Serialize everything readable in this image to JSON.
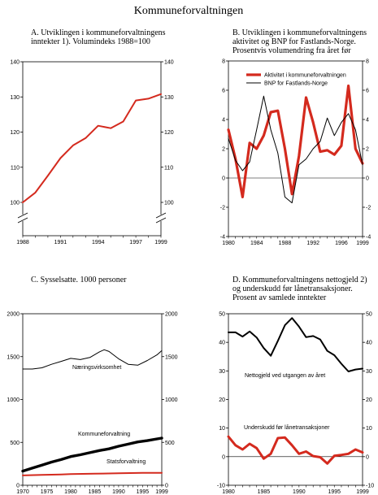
{
  "figure_title": "Kommuneforvaltningen",
  "chart_data": [
    {
      "id": "A",
      "type": "line",
      "title_lines": [
        "A.  Utviklingen i kommuneforvaltningens",
        "inntekter 1). Volumindeks 1988=100"
      ],
      "xlim": [
        1988,
        1999
      ],
      "ylim": [
        100,
        140
      ],
      "y_break": true,
      "x_ticks": [
        1988,
        1991,
        1994,
        1997,
        1999
      ],
      "y_ticks": [
        100,
        110,
        120,
        130,
        140
      ],
      "y_ticks_right": [
        100,
        110,
        120,
        130,
        140
      ],
      "series": [
        {
          "color": "#d42a1e",
          "width": 2,
          "x": [
            1988,
            1989,
            1990,
            1991,
            1992,
            1993,
            1994,
            1995,
            1996,
            1997,
            1998,
            1999
          ],
          "y": [
            100.0,
            102.8,
            107.6,
            112.6,
            116.2,
            118.3,
            121.8,
            121.1,
            123.0,
            129.0,
            129.5,
            130.8
          ]
        }
      ]
    },
    {
      "id": "B",
      "type": "line",
      "title_lines": [
        "B.  Utviklingen i kommuneforvaltningens",
        "aktivitet og BNP for Fastlands-Norge.",
        "Prosentvis volumendring fra året før"
      ],
      "xlim": [
        1980,
        1999
      ],
      "ylim": [
        -4,
        8
      ],
      "x_ticks": [
        1980,
        1984,
        1988,
        1992,
        1996,
        1999
      ],
      "y_ticks": [
        -4,
        -2,
        0,
        2,
        4,
        6,
        8
      ],
      "y_ticks_right": [
        -4,
        -2,
        0,
        2,
        4,
        6,
        8
      ],
      "zero_line": true,
      "legend_position": "top-left",
      "series": [
        {
          "name": "Aktivitet i kommuneforvaltningen",
          "color": "#d42a1e",
          "width": 3.2,
          "x": [
            1980,
            1981,
            1982,
            1983,
            1984,
            1985,
            1986,
            1987,
            1988,
            1989,
            1990,
            1991,
            1992,
            1993,
            1994,
            1995,
            1996,
            1997,
            1998,
            1999
          ],
          "y": [
            3.3,
            1.3,
            -1.3,
            2.4,
            2.0,
            2.9,
            4.5,
            4.6,
            2.0,
            -1.1,
            1.5,
            5.5,
            3.8,
            1.8,
            1.9,
            1.6,
            2.2,
            6.3,
            2.0,
            1.0
          ]
        },
        {
          "name": "BNP for Fastlands-Norge",
          "color": "#000000",
          "width": 1,
          "x": [
            1980,
            1981,
            1982,
            1983,
            1984,
            1985,
            1986,
            1987,
            1988,
            1989,
            1990,
            1991,
            1992,
            1993,
            1994,
            1995,
            1996,
            1997,
            1998,
            1999
          ],
          "y": [
            2.7,
            1.2,
            0.5,
            1.1,
            3.3,
            5.6,
            3.3,
            1.7,
            -1.3,
            -1.7,
            0.9,
            1.3,
            2.0,
            2.5,
            4.1,
            2.9,
            3.8,
            4.4,
            3.3,
            0.9
          ]
        }
      ]
    },
    {
      "id": "C",
      "type": "line",
      "title_lines": [
        "C.  Sysselsatte. 1000 personer"
      ],
      "xlim": [
        1970,
        1999
      ],
      "ylim": [
        0,
        2000
      ],
      "x_ticks": [
        1970,
        1975,
        1980,
        1985,
        1990,
        1995,
        1999
      ],
      "y_ticks": [
        0,
        500,
        1000,
        1500,
        2000
      ],
      "y_ticks_right": [
        0,
        500,
        1000,
        1500,
        2000
      ],
      "series": [
        {
          "name": "Næringsvirksomhet",
          "color": "#000000",
          "width": 1,
          "x": [
            1970,
            1972,
            1974,
            1976,
            1978,
            1980,
            1982,
            1984,
            1986,
            1987,
            1988,
            1990,
            1992,
            1994,
            1996,
            1998,
            1999
          ],
          "y": [
            1355,
            1355,
            1370,
            1410,
            1445,
            1480,
            1465,
            1490,
            1555,
            1580,
            1560,
            1475,
            1410,
            1400,
            1455,
            1520,
            1570
          ]
        },
        {
          "name": "Kommuneforvaltning",
          "color": "#000000",
          "width": 3.4,
          "x": [
            1970,
            1972,
            1974,
            1976,
            1978,
            1980,
            1982,
            1984,
            1986,
            1988,
            1990,
            1992,
            1994,
            1996,
            1998,
            1999
          ],
          "y": [
            165,
            200,
            235,
            270,
            300,
            335,
            355,
            380,
            405,
            425,
            455,
            480,
            505,
            520,
            540,
            550
          ]
        },
        {
          "name": "Statsforvaltning",
          "color": "#d42a1e",
          "width": 2,
          "x": [
            1970,
            1974,
            1978,
            1980,
            1985,
            1990,
            1995,
            1999
          ],
          "y": [
            115,
            120,
            125,
            130,
            135,
            140,
            145,
            145
          ]
        }
      ]
    },
    {
      "id": "D",
      "type": "line",
      "title_lines": [
        "D.  Kommuneforvaltningens nettogjeld 2)",
        "og underskudd før lånetransaksjoner.",
        "Prosent av samlede inntekter"
      ],
      "xlim": [
        1980,
        1999
      ],
      "ylim": [
        -10,
        50
      ],
      "x_ticks": [
        1980,
        1985,
        1990,
        1995,
        1999
      ],
      "y_ticks": [
        -10,
        0,
        10,
        20,
        30,
        40,
        50
      ],
      "y_ticks_right": [
        -10,
        0,
        10,
        20,
        30,
        40,
        50
      ],
      "zero_line": true,
      "series": [
        {
          "name": "Nettogjeld ved utgangen av året",
          "color": "#000000",
          "width": 2,
          "x": [
            1980,
            1981,
            1982,
            1983,
            1984,
            1985,
            1986,
            1987,
            1988,
            1989,
            1990,
            1991,
            1992,
            1993,
            1994,
            1995,
            1996,
            1997,
            1998,
            1999
          ],
          "y": [
            43.5,
            43.5,
            42.0,
            43.8,
            41.7,
            38.0,
            35.3,
            40.5,
            46.0,
            48.5,
            45.5,
            41.8,
            42.2,
            41.0,
            37.0,
            35.5,
            32.5,
            29.8,
            30.5,
            30.8
          ]
        },
        {
          "name": "Underskudd før lånetransaksjoner",
          "color": "#d42a1e",
          "width": 3,
          "x": [
            1980,
            1981,
            1982,
            1983,
            1984,
            1985,
            1986,
            1987,
            1988,
            1989,
            1990,
            1991,
            1992,
            1993,
            1994,
            1995,
            1996,
            1997,
            1998,
            1999
          ],
          "y": [
            7.0,
            4.0,
            2.5,
            4.5,
            3.0,
            -0.7,
            1.0,
            6.5,
            6.7,
            4.0,
            1.0,
            1.8,
            0.2,
            -0.2,
            -2.4,
            0.3,
            0.6,
            1.0,
            2.5,
            1.5
          ]
        }
      ]
    }
  ]
}
